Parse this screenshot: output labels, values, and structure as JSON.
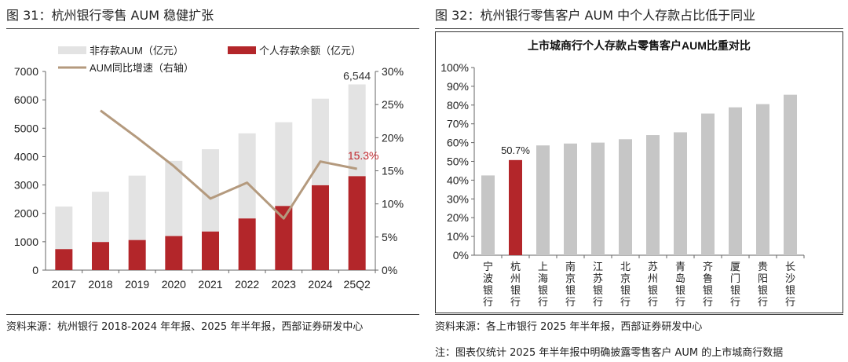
{
  "left": {
    "fig_title": "图 31：杭州银行零售 AUM 稳健扩张",
    "source": "资料来源：杭州银行 2018-2024 年年报、2025 年半年报，西部证券研发中心"
  },
  "right": {
    "fig_title": "图 32：杭州银行零售客户 AUM 中个人存款占比低于同业",
    "source": "资料来源：各上市银行 2025 年半年报，西部证券研发中心",
    "note": "注：图表仅统计 2025 年半年报中明确披露零售客户 AUM 的上市城商行数据"
  },
  "chart_data": [
    {
      "type": "bar",
      "title": "",
      "categories": [
        "2017",
        "2018",
        "2019",
        "2020",
        "2021",
        "2022",
        "2023",
        "2024",
        "25Q2"
      ],
      "series": [
        {
          "name": "非存款AUM（亿元）",
          "type": "bar-stacked",
          "color": "#e3e3e3",
          "values": [
            1500,
            1770,
            2270,
            2650,
            2900,
            3000,
            2950,
            3050,
            3234
          ]
        },
        {
          "name": "个人存款余额（亿元）",
          "type": "bar-stacked",
          "color": "#b3262a",
          "values": [
            740,
            990,
            1060,
            1200,
            1360,
            1820,
            2260,
            2990,
            3310
          ]
        },
        {
          "name": "AUM同比增速（右轴）",
          "type": "line",
          "axis": "right",
          "color": "#b49a7e",
          "values": [
            null,
            24.1,
            20.0,
            15.7,
            10.8,
            13.2,
            7.8,
            16.4,
            15.3
          ]
        }
      ],
      "ylim": [
        0,
        7000
      ],
      "yticks": [
        "0",
        "1000",
        "2000",
        "3000",
        "4000",
        "5000",
        "6000",
        "7000"
      ],
      "ylim_right": [
        0,
        30
      ],
      "yticks_right": [
        "0%",
        "5%",
        "10%",
        "15%",
        "20%",
        "25%",
        "30%"
      ],
      "annotations": [
        "6,544",
        "15.3%"
      ],
      "legend": "top"
    },
    {
      "type": "bar",
      "title": "上市城商行个人存款占零售客户AUM比重对比",
      "categories": [
        "宁波银行",
        "杭州银行",
        "上海银行",
        "南京银行",
        "江苏银行",
        "北京银行",
        "苏州银行",
        "青岛银行",
        "齐鲁银行",
        "厦门银行",
        "贵阳银行",
        "长沙银行"
      ],
      "values": [
        42.5,
        50.7,
        58.5,
        59.5,
        60.0,
        61.8,
        64.0,
        65.5,
        75.5,
        78.8,
        80.5,
        85.5
      ],
      "highlight": "杭州银行",
      "colors": {
        "bar": "#c6c6c6",
        "highlight": "#b3262a"
      },
      "ylim": [
        0,
        100
      ],
      "yticks": [
        "0%",
        "10%",
        "20%",
        "30%",
        "40%",
        "50%",
        "60%",
        "70%",
        "80%",
        "90%",
        "100%"
      ],
      "annotations": [
        "50.7%"
      ]
    }
  ]
}
